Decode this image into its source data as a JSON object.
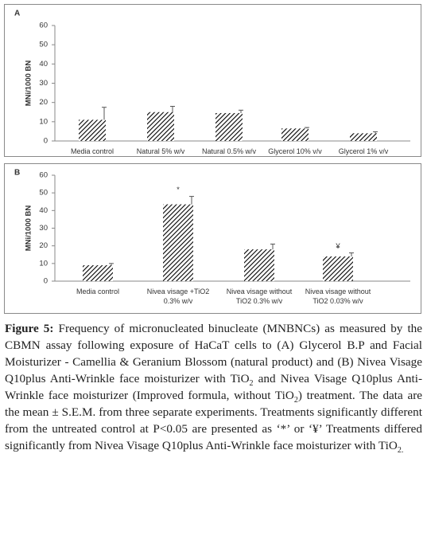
{
  "chart_data": [
    {
      "type": "bar",
      "panel_label": "A",
      "ylabel": "MNi/1000 BN",
      "categories": [
        "Media control",
        "Natural 5% w/v",
        "Natural 0.5% w/v",
        "Glycerol 10% v/v",
        "Glycerol 1% v/v"
      ],
      "values": [
        11,
        15,
        14.5,
        6.5,
        4
      ],
      "errors": [
        6.5,
        3,
        1.5,
        0.5,
        0.8
      ],
      "ylim": [
        0,
        60
      ],
      "yticks": [
        0,
        10,
        20,
        30,
        40,
        50,
        60
      ],
      "color": "#000000"
    },
    {
      "type": "bar",
      "panel_label": "B",
      "ylabel": "MNi/1000 BN",
      "categories": [
        "Media control",
        "Nivea visage +TiO2\n0.3% w/v",
        "Nivea visage without\nTiO2  0.3% w/v",
        "Nivea visage without\nTiO2  0.03% w/v"
      ],
      "values": [
        9,
        43.5,
        18,
        14
      ],
      "errors": [
        1,
        4.5,
        3,
        2
      ],
      "annotations": [
        null,
        "*",
        null,
        "¥"
      ],
      "ylim": [
        0,
        60
      ],
      "yticks": [
        0,
        10,
        20,
        30,
        40,
        50,
        60
      ],
      "color": "#000000"
    }
  ],
  "caption": {
    "label": "Figure 5:",
    "parts": [
      "Frequency of micronucleated binucleate (MNBNCs) as measured by the CBMN assay following exposure of HaCaT cells to (A) Glycerol B.P and Facial Moisturizer - Camellia & Geranium Blossom (natural product) and (B) Nivea Visage Q10plus Anti-Wrinkle face moisturizer with TiO",
      "2",
      " and Nivea Visage Q10plus Anti-Wrinkle face moisturizer (Improved formula, without TiO",
      "2",
      ") treatment. The data are the mean ± S.E.M. from three separate experiments. Treatments significantly different from the untreated control at P<0.05 are presented as ‘*’ or ‘¥’ Treatments differed significantly from Nivea Visage Q10plus Anti-Wrinkle face moisturizer with TiO",
      "2."
    ]
  }
}
